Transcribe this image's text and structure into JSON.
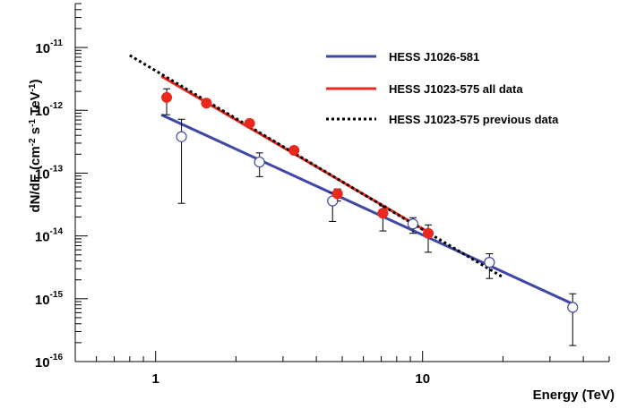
{
  "chart_data": {
    "type": "scatter",
    "xlabel": "Energy (TeV)",
    "ylabel": "dN/dE (cm-2 s-1 TeV-1)",
    "xscale": "log",
    "yscale": "log",
    "xlim": [
      0.5,
      50
    ],
    "ylim": [
      1e-16,
      5e-11
    ],
    "x_ticks": [
      {
        "value": 1,
        "label": "1"
      },
      {
        "value": 10,
        "label": "10"
      }
    ],
    "y_ticks": [
      {
        "value": 1e-11,
        "base": "10",
        "exp": "-11"
      },
      {
        "value": 1e-12,
        "base": "10",
        "exp": "-12"
      },
      {
        "value": 1e-13,
        "base": "10",
        "exp": "-13"
      },
      {
        "value": 1e-14,
        "base": "10",
        "exp": "-14"
      },
      {
        "value": 1e-15,
        "base": "10",
        "exp": "-15"
      },
      {
        "value": 1e-16,
        "base": "10",
        "exp": "-16"
      }
    ],
    "grid": false,
    "legend_position": "top-right",
    "series": [
      {
        "name": "HESS J1026-581",
        "kind": "fit-line",
        "color": "#3f48a8",
        "style": "solid",
        "x": [
          1.05,
          36
        ],
        "y": [
          8.5e-13,
          8.5e-16
        ]
      },
      {
        "name": "HESS J1023-575 all data",
        "kind": "fit-line",
        "color": "#e8291c",
        "style": "solid",
        "x": [
          1.05,
          10.5
        ],
        "y": [
          3.5e-12,
          1.15e-14
        ]
      },
      {
        "name": "HESS J1023-575 previous data",
        "kind": "fit-line",
        "color": "#000000",
        "style": "dotted",
        "x": [
          0.8,
          20
        ],
        "y": [
          7.5e-12,
          2.2e-15
        ]
      },
      {
        "name": "",
        "kind": "points",
        "marker": "open-circle",
        "color": "#3f48a8",
        "x": [
          1.25,
          2.45,
          4.6,
          9.2,
          17.8,
          36.5
        ],
        "y": [
          3.8e-13,
          1.5e-13,
          3.6e-14,
          1.55e-14,
          3.8e-15,
          7.3e-16
        ],
        "yerr_low": [
          3.3e-14,
          8.8e-14,
          1.7e-14,
          1.1e-14,
          2.1e-15,
          1.8e-16
        ],
        "yerr_high": [
          7.2e-13,
          2.1e-13,
          4.9e-14,
          1.95e-14,
          5.2e-15,
          1.2e-15
        ]
      },
      {
        "name": "",
        "kind": "points",
        "marker": "filled-circle",
        "color": "#e8291c",
        "x": [
          1.1,
          1.55,
          2.25,
          3.3,
          4.8,
          7.1,
          10.5
        ],
        "y": [
          1.6e-12,
          1.3e-12,
          6.2e-13,
          2.3e-13,
          4.7e-14,
          2.3e-14,
          1.1e-14
        ],
        "yerr_low": [
          8.5e-13,
          1.15e-12,
          5.7e-13,
          2.15e-13,
          3.6e-14,
          1.2e-14,
          5.5e-15
        ],
        "yerr_high": [
          2.2e-12,
          1.5e-12,
          6.8e-13,
          2.5e-13,
          5.6e-14,
          3e-14,
          1.5e-14
        ]
      }
    ]
  }
}
